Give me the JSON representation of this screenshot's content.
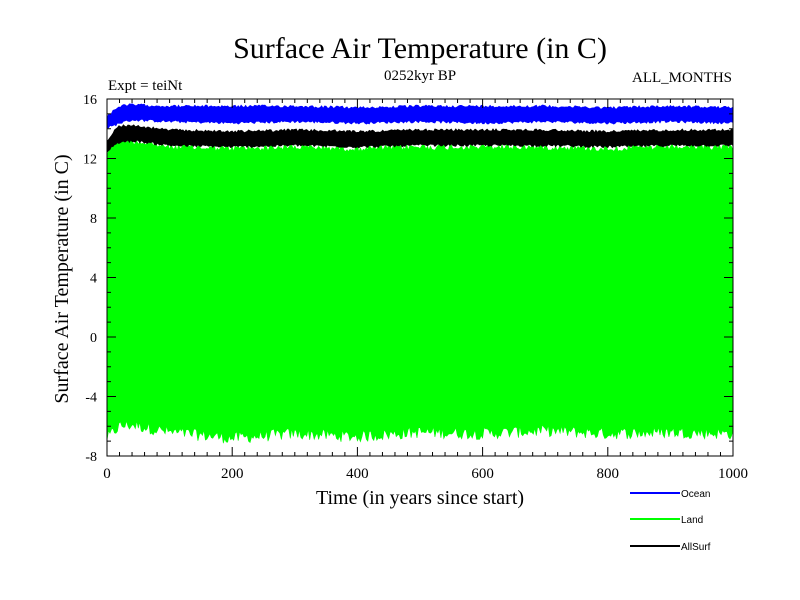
{
  "chart_data": {
    "type": "line",
    "title": "Surface Air Temperature (in C)",
    "subtitle": "0252kyr BP",
    "left_annotation": "Expt = teiNt",
    "right_annotation": "ALL_MONTHS",
    "xlabel": "Time (in years since start)",
    "ylabel": "Surface Air Temperature (in C)",
    "xlim": [
      0,
      1000
    ],
    "ylim": [
      -8,
      16
    ],
    "x_ticks": [
      0,
      200,
      400,
      600,
      800,
      1000
    ],
    "y_ticks": [
      -8,
      -4,
      0,
      4,
      8,
      12,
      16
    ],
    "x_tick_labels": [
      "0",
      "200",
      "400",
      "600",
      "800",
      "1000"
    ],
    "y_tick_labels": [
      "-8",
      "-4",
      "0",
      "4",
      "8",
      "12",
      "16"
    ],
    "grid": false,
    "legend_position": "bottom-right",
    "series": [
      {
        "name": "Ocean",
        "color": "#0000ff",
        "x": [
          0,
          10,
          20,
          40,
          100,
          200,
          300,
          400,
          500,
          600,
          700,
          800,
          900,
          1000
        ],
        "min": [
          14.0,
          14.1,
          14.3,
          14.5,
          14.4,
          14.3,
          14.4,
          14.3,
          14.4,
          14.3,
          14.4,
          14.3,
          14.4,
          14.3
        ],
        "max": [
          14.9,
          15.3,
          15.6,
          15.7,
          15.6,
          15.6,
          15.6,
          15.5,
          15.6,
          15.6,
          15.6,
          15.5,
          15.6,
          15.5
        ]
      },
      {
        "name": "Land",
        "color": "#00ff00",
        "x": [
          0,
          10,
          20,
          40,
          100,
          200,
          300,
          400,
          500,
          600,
          700,
          800,
          900,
          1000
        ],
        "min": [
          -7.2,
          -6.8,
          -6.4,
          -6.3,
          -6.8,
          -7.2,
          -6.9,
          -7.1,
          -6.8,
          -6.9,
          -6.7,
          -6.9,
          -6.8,
          -6.9
        ],
        "max": [
          12.6,
          13.2,
          13.5,
          13.4,
          13.0,
          12.9,
          13.0,
          12.9,
          13.0,
          13.0,
          13.0,
          12.9,
          13.0,
          13.0
        ]
      },
      {
        "name": "AllSurf",
        "color": "#000000",
        "x": [
          0,
          10,
          20,
          40,
          100,
          200,
          300,
          400,
          500,
          600,
          700,
          800,
          900,
          1000
        ],
        "min": [
          12.3,
          12.8,
          13.0,
          13.1,
          12.8,
          12.7,
          12.8,
          12.7,
          12.8,
          12.8,
          12.8,
          12.7,
          12.8,
          12.8
        ],
        "max": [
          13.3,
          13.9,
          14.3,
          14.3,
          14.0,
          13.9,
          14.0,
          13.9,
          14.0,
          14.0,
          14.0,
          13.9,
          14.0,
          14.0
        ]
      }
    ]
  }
}
